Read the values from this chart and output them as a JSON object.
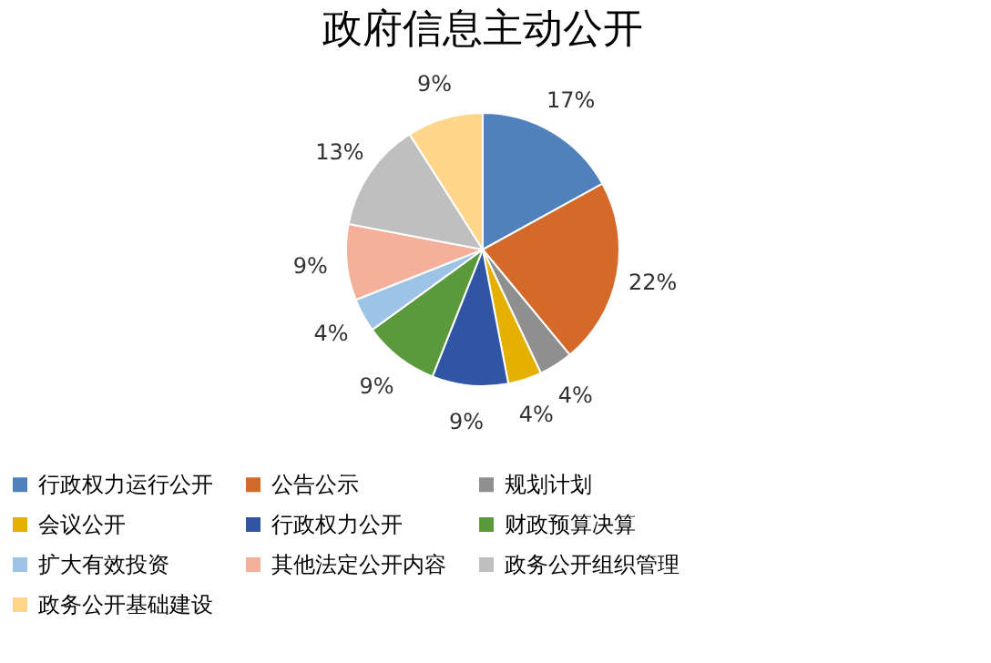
{
  "chart_data": {
    "type": "pie",
    "title": "政府信息主动公开",
    "categories": [
      "行政权力运行公开",
      "公告公示",
      "规划计划",
      "会议公开",
      "行政权力公开",
      "财政预算决算",
      "扩大有效投资",
      "其他法定公开内容",
      "政务公开组织管理",
      "政务公开基础建设"
    ],
    "values": [
      17,
      22,
      4,
      4,
      9,
      9,
      4,
      9,
      13,
      9
    ],
    "colors": [
      "#4f81bd",
      "#d4692a",
      "#8f8f8f",
      "#e6b000",
      "#2f55a4",
      "#5a9a3c",
      "#9dc3e6",
      "#f4b09a",
      "#bfbfbf",
      "#ffd68a"
    ],
    "value_labels": [
      "17%",
      "22%",
      "4%",
      "4%",
      "9%",
      "9%",
      "4%",
      "9%",
      "13%",
      "9%"
    ],
    "legend": "bottom"
  }
}
